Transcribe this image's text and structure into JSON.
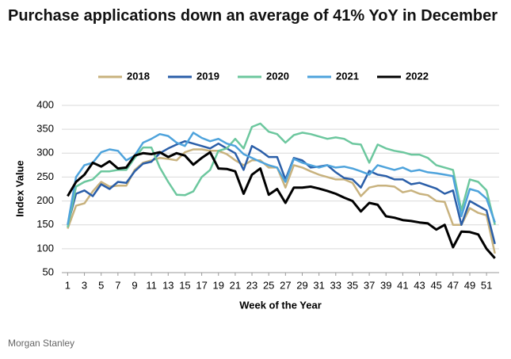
{
  "chart_data": {
    "type": "line",
    "title": "Purchase applications down an average of 41% YoY in December",
    "x_label": "Week of the Year",
    "y_label": "Index Value",
    "source": "Morgan Stanley",
    "x": [
      1,
      2,
      3,
      4,
      5,
      6,
      7,
      8,
      9,
      10,
      11,
      12,
      13,
      14,
      15,
      16,
      17,
      18,
      19,
      20,
      21,
      22,
      23,
      24,
      25,
      26,
      27,
      28,
      29,
      30,
      31,
      32,
      33,
      34,
      35,
      36,
      37,
      38,
      39,
      40,
      41,
      42,
      43,
      44,
      45,
      46,
      47,
      48,
      49,
      50,
      51,
      52
    ],
    "xlim": [
      0.3,
      52.5
    ],
    "xticks": [
      1,
      3,
      5,
      7,
      9,
      11,
      13,
      15,
      17,
      19,
      21,
      23,
      25,
      27,
      29,
      31,
      33,
      35,
      37,
      39,
      41,
      43,
      45,
      47,
      49,
      51
    ],
    "ylim": [
      50,
      400
    ],
    "yticks": [
      50,
      100,
      150,
      200,
      250,
      300,
      350,
      400
    ],
    "grid": true,
    "legend": "top",
    "series": [
      {
        "name": "2018",
        "color": "#c8b27e",
        "values": [
          142,
          190,
          195,
          220,
          240,
          230,
          232,
          232,
          265,
          280,
          285,
          290,
          288,
          285,
          302,
          308,
          308,
          305,
          305,
          298,
          285,
          275,
          285,
          285,
          270,
          270,
          228,
          275,
          270,
          262,
          255,
          250,
          245,
          245,
          238,
          210,
          228,
          232,
          232,
          230,
          218,
          222,
          215,
          212,
          200,
          198,
          150,
          150,
          185,
          175,
          170,
          90
        ]
      },
      {
        "name": "2019",
        "color": "#2a5ea8",
        "values": [
          150,
          215,
          222,
          210,
          235,
          225,
          240,
          238,
          262,
          278,
          282,
          300,
          310,
          318,
          325,
          320,
          315,
          310,
          320,
          310,
          300,
          265,
          315,
          305,
          292,
          292,
          245,
          290,
          285,
          270,
          272,
          275,
          260,
          248,
          245,
          228,
          263,
          255,
          252,
          245,
          245,
          235,
          238,
          232,
          226,
          215,
          222,
          150,
          200,
          190,
          180,
          110
        ]
      },
      {
        "name": "2020",
        "color": "#6cc79e",
        "values": [
          145,
          230,
          240,
          245,
          262,
          262,
          265,
          265,
          290,
          312,
          312,
          270,
          240,
          213,
          212,
          220,
          250,
          265,
          305,
          310,
          330,
          310,
          355,
          362,
          345,
          340,
          322,
          338,
          343,
          340,
          335,
          330,
          333,
          330,
          320,
          318,
          280,
          318,
          310,
          305,
          302,
          297,
          297,
          290,
          275,
          270,
          265,
          180,
          245,
          240,
          222,
          150
        ]
      },
      {
        "name": "2021",
        "color": "#4ea3dc",
        "values": [
          150,
          250,
          275,
          280,
          302,
          308,
          305,
          285,
          295,
          322,
          330,
          340,
          336,
          322,
          315,
          343,
          332,
          325,
          330,
          320,
          315,
          298,
          290,
          282,
          275,
          270,
          240,
          288,
          280,
          275,
          270,
          275,
          270,
          272,
          268,
          262,
          255,
          275,
          270,
          265,
          270,
          262,
          265,
          260,
          258,
          255,
          252,
          168,
          225,
          220,
          205,
          155
        ]
      },
      {
        "name": "2022",
        "color": "#000000",
        "values": [
          210,
          240,
          255,
          280,
          272,
          283,
          268,
          270,
          295,
          300,
          298,
          302,
          292,
          300,
          295,
          276,
          290,
          302,
          268,
          267,
          262,
          215,
          255,
          268,
          213,
          225,
          196,
          228,
          228,
          230,
          226,
          221,
          215,
          207,
          200,
          178,
          196,
          192,
          168,
          165,
          160,
          158,
          155,
          153,
          140,
          150,
          103,
          136,
          135,
          130,
          100,
          80
        ]
      }
    ]
  }
}
